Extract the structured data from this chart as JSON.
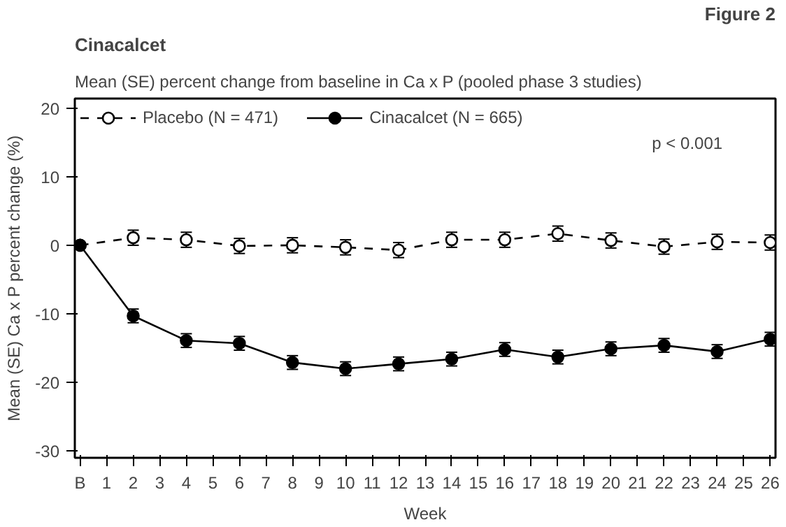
{
  "chart_data": {
    "type": "line",
    "title": "Cinacalcet",
    "subtitle": "Mean (SE) percent change from baseline in Ca x P (pooled phase 3 studies)",
    "xlabel": "Week",
    "ylabel": "Mean (SE) Ca x P percent change (%)",
    "annotations": [
      "Figure 2",
      "p < 0.001"
    ],
    "x": [
      0,
      2,
      4,
      6,
      8,
      10,
      12,
      14,
      16,
      18,
      20,
      22,
      24,
      26
    ],
    "series": [
      {
        "name": "Placebo (N = 471)",
        "color": "#000000",
        "line_style": "dashed",
        "values": [
          0,
          1.1,
          0.8,
          -0.1,
          0,
          -0.3,
          -0.7,
          0.8,
          0.8,
          1.7,
          0.7,
          -0.2,
          0.5,
          0.4
        ],
        "errors": [
          null,
          1.1,
          1.1,
          1.1,
          1.1,
          1.1,
          1.1,
          1.1,
          1.1,
          1.1,
          1.1,
          1.1,
          1.1,
          1.1
        ]
      },
      {
        "name": "Cinacalcet (N = 665)",
        "color": "#000000",
        "line_style": "solid",
        "values": [
          0,
          -10.3,
          -13.9,
          -14.3,
          -17.1,
          -18.0,
          -17.3,
          -16.6,
          -15.2,
          -16.3,
          -15.1,
          -14.6,
          -15.5,
          -13.7
        ],
        "errors": [
          null,
          1.0,
          1.0,
          1.0,
          1.0,
          1.0,
          1.0,
          1.0,
          1.0,
          1.0,
          1.0,
          1.0,
          1.0,
          1.0
        ]
      }
    ],
    "xlim": [
      -0.2,
      26.2
    ],
    "ylim": [
      -31,
      21.4
    ],
    "xticks": [
      {
        "value": 0,
        "label": "B"
      },
      1,
      2,
      3,
      4,
      5,
      6,
      7,
      8,
      9,
      10,
      11,
      12,
      13,
      14,
      15,
      16,
      17,
      18,
      19,
      20,
      21,
      22,
      23,
      24,
      25,
      26
    ],
    "yticks": [
      -30,
      -20,
      -10,
      0,
      10,
      20
    ],
    "marker": "circle",
    "grid": false,
    "legend": "top left"
  }
}
